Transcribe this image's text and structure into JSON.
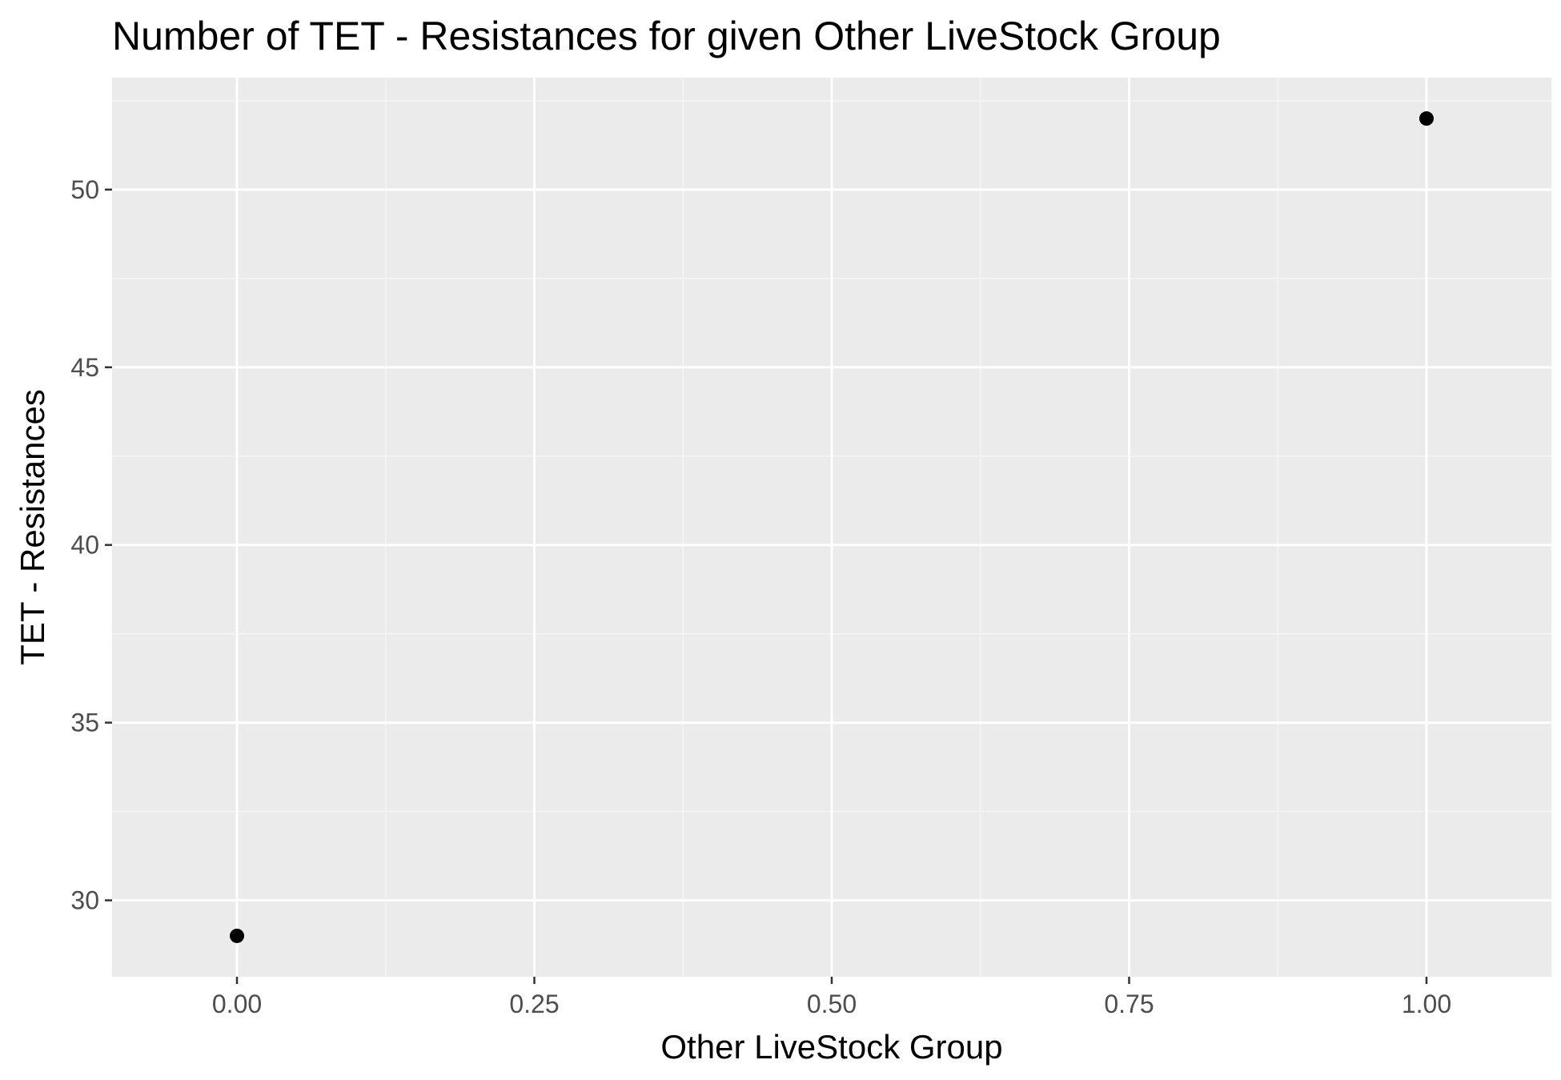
{
  "chart_data": {
    "type": "scatter",
    "title": "Number of TET - Resistances for given Other LiveStock Group",
    "xlabel": "Other LiveStock Group",
    "ylabel": "TET - Resistances",
    "xlim": [
      -0.105,
      1.105
    ],
    "ylim": [
      27.85,
      53.15
    ],
    "x_ticks": [
      0.0,
      0.25,
      0.5,
      0.75,
      1.0
    ],
    "x_tick_labels": [
      "0.00",
      "0.25",
      "0.50",
      "0.75",
      "1.00"
    ],
    "y_ticks": [
      30,
      35,
      40,
      45,
      50
    ],
    "y_tick_labels": [
      "30",
      "35",
      "40",
      "45",
      "50"
    ],
    "grid": true,
    "legend": "none",
    "points": [
      {
        "x": 0,
        "y": 29
      },
      {
        "x": 1,
        "y": 52
      }
    ],
    "colors": {
      "panel_background": "#ebebeb",
      "grid_major": "#ffffff",
      "grid_minor": "#f5f5f5",
      "point": "#000000",
      "tick_text": "#4d4d4d",
      "axis_text": "#000000"
    }
  }
}
